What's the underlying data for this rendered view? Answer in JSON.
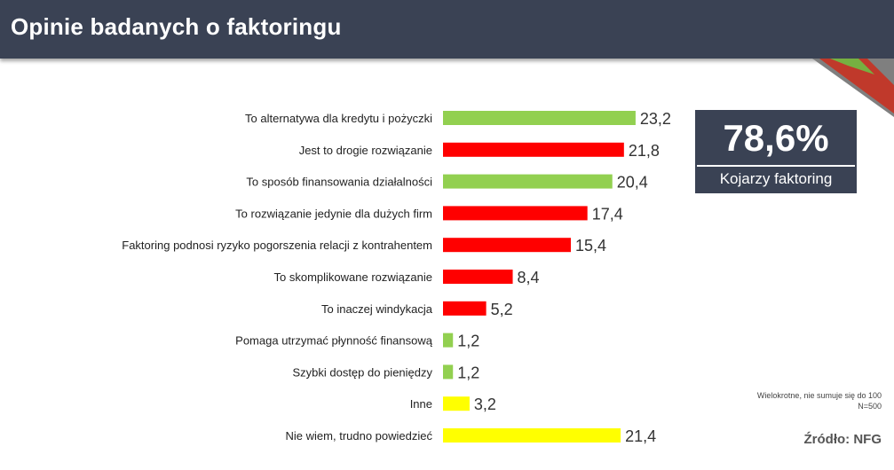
{
  "header": {
    "title": "Opinie badanych o faktoringu"
  },
  "kpi": {
    "value": "78,6%",
    "label": "Kojarzy faktoring"
  },
  "footer": {
    "note_line1": "Wielokrotne, nie sumuje się do 100",
    "note_line2": "N=500",
    "source": "Źródło: NFG"
  },
  "colors": {
    "header_bg": "#3a4254",
    "green": "#92d050",
    "red": "#ff0000",
    "yellow": "#ffff00"
  },
  "chart_data": {
    "type": "bar",
    "orientation": "horizontal",
    "title": "Opinie badanych o faktoringu",
    "xlabel": "",
    "ylabel": "",
    "xlim": [
      0,
      25
    ],
    "grid": false,
    "categories": [
      "To alternatywa dla kredytu i pożyczki",
      "Jest to drogie rozwiązanie",
      "To sposób finansowania działalności",
      "To rozwiązanie jedynie dla dużych firm",
      "Faktoring podnosi ryzyko pogorszenia relacji z kontrahentem",
      "To skomplikowane rozwiązanie",
      "To inaczej windykacja",
      "Pomaga utrzymać płynność finansową",
      "Szybki dostęp do pieniędzy",
      "Inne",
      "Nie wiem, trudno powiedzieć"
    ],
    "values": [
      23.2,
      21.8,
      20.4,
      17.4,
      15.4,
      8.4,
      5.2,
      1.2,
      1.2,
      3.2,
      21.4
    ],
    "value_labels": [
      "23,2",
      "21,8",
      "20,4",
      "17,4",
      "15,4",
      "8,4",
      "5,2",
      "1,2",
      "1,2",
      "3,2",
      "21,4"
    ],
    "bar_colors": [
      "#92d050",
      "#ff0000",
      "#92d050",
      "#ff0000",
      "#ff0000",
      "#ff0000",
      "#ff0000",
      "#92d050",
      "#92d050",
      "#ffff00",
      "#ffff00"
    ]
  }
}
